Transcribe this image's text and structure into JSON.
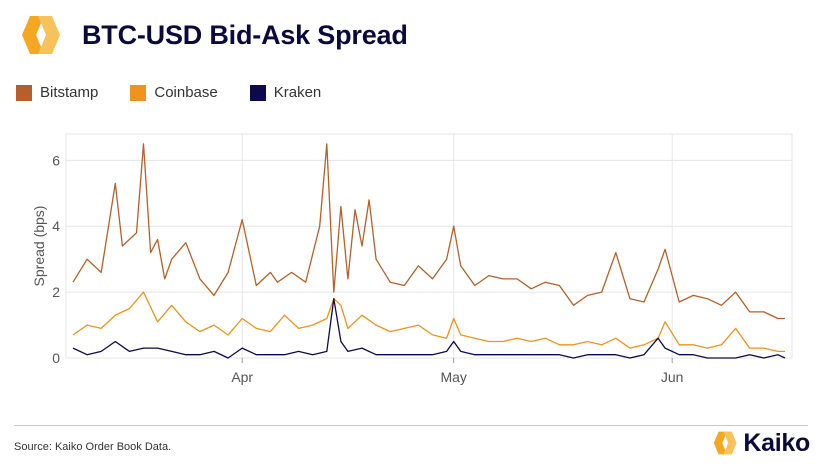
{
  "header": {
    "title": "BTC-USD Bid-Ask Spread"
  },
  "footer": {
    "source": "Source: Kaiko Order Book Data.",
    "brand": "Kaiko"
  },
  "colors": {
    "Bitstamp": "#b5602a",
    "Coinbase": "#f0921e",
    "Kraken": "#0c0a4d",
    "logo_orange": "#f5a623",
    "title_navy": "#0b0b3b"
  },
  "icons": {
    "logo": "kaiko-logo-icon"
  },
  "chart_data": {
    "type": "line",
    "title": "",
    "xlabel": "",
    "ylabel": "Spread (bps)",
    "ylim": [
      0,
      6.8
    ],
    "yticks": [
      0,
      2,
      4,
      6
    ],
    "xlim": [
      "2024-03-07",
      "2024-06-18"
    ],
    "xticks": [
      {
        "label": "Apr",
        "date": "2024-04-01"
      },
      {
        "label": "May",
        "date": "2024-05-01"
      },
      {
        "label": "Jun",
        "date": "2024-06-01"
      }
    ],
    "grid": true,
    "legend": "top-left",
    "series": [
      {
        "name": "Bitstamp",
        "x": [
          "2024-03-08",
          "2024-03-10",
          "2024-03-12",
          "2024-03-14",
          "2024-03-15",
          "2024-03-17",
          "2024-03-18",
          "2024-03-19",
          "2024-03-20",
          "2024-03-21",
          "2024-03-22",
          "2024-03-24",
          "2024-03-26",
          "2024-03-28",
          "2024-03-30",
          "2024-04-01",
          "2024-04-03",
          "2024-04-05",
          "2024-04-06",
          "2024-04-08",
          "2024-04-10",
          "2024-04-12",
          "2024-04-13",
          "2024-04-14",
          "2024-04-15",
          "2024-04-16",
          "2024-04-17",
          "2024-04-18",
          "2024-04-19",
          "2024-04-20",
          "2024-04-22",
          "2024-04-24",
          "2024-04-26",
          "2024-04-28",
          "2024-04-30",
          "2024-05-01",
          "2024-05-02",
          "2024-05-04",
          "2024-05-06",
          "2024-05-08",
          "2024-05-10",
          "2024-05-12",
          "2024-05-14",
          "2024-05-16",
          "2024-05-18",
          "2024-05-20",
          "2024-05-22",
          "2024-05-24",
          "2024-05-26",
          "2024-05-28",
          "2024-05-30",
          "2024-05-31",
          "2024-06-02",
          "2024-06-04",
          "2024-06-06",
          "2024-06-08",
          "2024-06-10",
          "2024-06-12",
          "2024-06-14",
          "2024-06-16",
          "2024-06-17"
        ],
        "values": [
          2.3,
          3.0,
          2.6,
          5.3,
          3.4,
          3.8,
          6.5,
          3.2,
          3.6,
          2.4,
          3.0,
          3.5,
          2.4,
          1.9,
          2.6,
          4.2,
          2.2,
          2.6,
          2.3,
          2.6,
          2.3,
          4.0,
          6.5,
          2.0,
          4.6,
          2.4,
          4.5,
          3.4,
          4.8,
          3.0,
          2.3,
          2.2,
          2.8,
          2.4,
          3.0,
          4.0,
          2.8,
          2.2,
          2.5,
          2.4,
          2.4,
          2.1,
          2.3,
          2.2,
          1.6,
          1.9,
          2.0,
          3.2,
          1.8,
          1.7,
          2.7,
          3.3,
          1.7,
          1.9,
          1.8,
          1.6,
          2.0,
          1.4,
          1.4,
          1.2,
          1.2
        ]
      },
      {
        "name": "Coinbase",
        "x": [
          "2024-03-08",
          "2024-03-10",
          "2024-03-12",
          "2024-03-14",
          "2024-03-16",
          "2024-03-18",
          "2024-03-20",
          "2024-03-22",
          "2024-03-24",
          "2024-03-26",
          "2024-03-28",
          "2024-03-30",
          "2024-04-01",
          "2024-04-03",
          "2024-04-05",
          "2024-04-07",
          "2024-04-09",
          "2024-04-11",
          "2024-04-13",
          "2024-04-14",
          "2024-04-15",
          "2024-04-16",
          "2024-04-18",
          "2024-04-20",
          "2024-04-22",
          "2024-04-24",
          "2024-04-26",
          "2024-04-28",
          "2024-04-30",
          "2024-05-01",
          "2024-05-02",
          "2024-05-04",
          "2024-05-06",
          "2024-05-08",
          "2024-05-10",
          "2024-05-12",
          "2024-05-14",
          "2024-05-16",
          "2024-05-18",
          "2024-05-20",
          "2024-05-22",
          "2024-05-24",
          "2024-05-26",
          "2024-05-28",
          "2024-05-30",
          "2024-05-31",
          "2024-06-02",
          "2024-06-04",
          "2024-06-06",
          "2024-06-08",
          "2024-06-10",
          "2024-06-12",
          "2024-06-14",
          "2024-06-16",
          "2024-06-17"
        ],
        "values": [
          0.7,
          1.0,
          0.9,
          1.3,
          1.5,
          2.0,
          1.1,
          1.6,
          1.1,
          0.8,
          1.0,
          0.7,
          1.2,
          0.9,
          0.8,
          1.3,
          0.9,
          1.0,
          1.2,
          1.8,
          1.6,
          0.9,
          1.3,
          1.0,
          0.8,
          0.9,
          1.0,
          0.7,
          0.6,
          1.2,
          0.7,
          0.6,
          0.5,
          0.5,
          0.6,
          0.5,
          0.6,
          0.4,
          0.4,
          0.5,
          0.4,
          0.6,
          0.3,
          0.4,
          0.6,
          1.1,
          0.4,
          0.4,
          0.3,
          0.4,
          0.9,
          0.3,
          0.3,
          0.2,
          0.2
        ]
      },
      {
        "name": "Kraken",
        "x": [
          "2024-03-08",
          "2024-03-10",
          "2024-03-12",
          "2024-03-14",
          "2024-03-16",
          "2024-03-18",
          "2024-03-20",
          "2024-03-22",
          "2024-03-24",
          "2024-03-26",
          "2024-03-28",
          "2024-03-30",
          "2024-04-01",
          "2024-04-03",
          "2024-04-05",
          "2024-04-07",
          "2024-04-09",
          "2024-04-11",
          "2024-04-13",
          "2024-04-14",
          "2024-04-15",
          "2024-04-16",
          "2024-04-18",
          "2024-04-20",
          "2024-04-22",
          "2024-04-24",
          "2024-04-26",
          "2024-04-28",
          "2024-04-30",
          "2024-05-01",
          "2024-05-02",
          "2024-05-04",
          "2024-05-06",
          "2024-05-08",
          "2024-05-10",
          "2024-05-12",
          "2024-05-14",
          "2024-05-16",
          "2024-05-18",
          "2024-05-20",
          "2024-05-22",
          "2024-05-24",
          "2024-05-26",
          "2024-05-28",
          "2024-05-30",
          "2024-05-31",
          "2024-06-02",
          "2024-06-04",
          "2024-06-06",
          "2024-06-08",
          "2024-06-10",
          "2024-06-12",
          "2024-06-14",
          "2024-06-16",
          "2024-06-17"
        ],
        "values": [
          0.3,
          0.1,
          0.2,
          0.5,
          0.2,
          0.3,
          0.3,
          0.2,
          0.1,
          0.1,
          0.2,
          0.0,
          0.3,
          0.1,
          0.1,
          0.1,
          0.2,
          0.1,
          0.2,
          1.8,
          0.5,
          0.2,
          0.3,
          0.1,
          0.1,
          0.1,
          0.1,
          0.1,
          0.2,
          0.5,
          0.2,
          0.1,
          0.1,
          0.1,
          0.1,
          0.1,
          0.1,
          0.1,
          0.0,
          0.1,
          0.1,
          0.1,
          0.0,
          0.1,
          0.6,
          0.3,
          0.1,
          0.1,
          0.0,
          0.0,
          0.0,
          0.1,
          0.0,
          0.1,
          0.0
        ]
      }
    ]
  }
}
